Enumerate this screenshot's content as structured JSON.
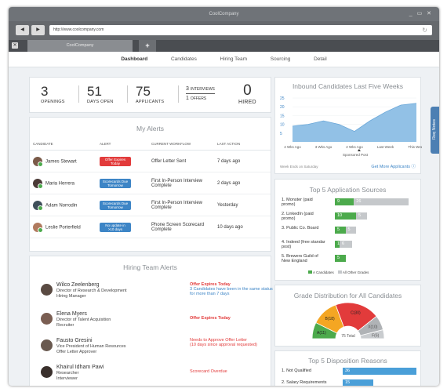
{
  "window": {
    "title": "CoolCompany",
    "controls": "_ ▭ ✕"
  },
  "browser": {
    "back": "◀",
    "forward": "▶",
    "url": "http://www.coolcompany.com",
    "reload": "↻",
    "tab_title": "CoolCompany",
    "new_tab": "+",
    "tab_close": "✕"
  },
  "nav": {
    "items": [
      "Dashboard",
      "Candidates",
      "Hiring Team",
      "Sourcing",
      "Detail"
    ],
    "active": 0
  },
  "metrics": {
    "openings": {
      "value": "3",
      "label": "OPENINGS"
    },
    "days_open": {
      "value": "51",
      "label": "DAYS OPEN"
    },
    "applicants": {
      "value": "75",
      "label": "APPLICANTS"
    },
    "interviews": {
      "value": "3",
      "label": "INTERVIEWS"
    },
    "offers": {
      "value": "1",
      "label": "OFFERS"
    },
    "hired": {
      "value": "0",
      "label": "HIRED"
    }
  },
  "my_alerts": {
    "title": "My Alerts",
    "columns": [
      "CANDIDATE",
      "ALERT",
      "CURRENT WORKFLOW",
      "LAST ACTION"
    ],
    "rows": [
      {
        "name": "James Stewart",
        "alert": "Offer Expires Today",
        "alert_color": "#e23b3b",
        "workflow": "Offer Letter Sent",
        "last": "7 days ago"
      },
      {
        "name": "Maria Herrera",
        "alert": "Scorecards Due Tomorrow",
        "alert_color": "#3d85c6",
        "workflow": "First In-Person Interview Complete",
        "last": "2 days ago"
      },
      {
        "name": "Adam Norrodin",
        "alert": "Scorecards Due Tomorrow",
        "alert_color": "#3d85c6",
        "workflow": "First In-Person Interview Complete",
        "last": "Yesterday"
      },
      {
        "name": "Leslie Porterfield",
        "alert": "No update in >10 days",
        "alert_color": "#3d85c6",
        "workflow": "Phone Screen Scorecard Complete",
        "last": "10 days ago"
      }
    ]
  },
  "hiring_team": {
    "title": "Hiring Team Alerts",
    "rows": [
      {
        "name": "Wilco Zeelenberg",
        "title": "Director of Research & Development",
        "role": "Hiring Manager",
        "alert": "Offer Expires Today",
        "detail": "3 Candidates have been in the same status for more than 7 days"
      },
      {
        "name": "Elena Myers",
        "title": "Director of Talent Acquisition",
        "role": "Recruiter",
        "alert": "Offer Expires Today",
        "detail": ""
      },
      {
        "name": "Fausto Gresini",
        "title": "Vice President of Human Resources",
        "role": "Offer Letter Approver",
        "alert": "Needs to Approve Offer Letter",
        "detail": "(10 days since approval requested)"
      },
      {
        "name": "Khairul Idham Pawi",
        "title": "Researcher",
        "role": "Interviewer",
        "alert": "Scorecard Overdue",
        "detail": ""
      }
    ]
  },
  "inbound": {
    "title": "Inbound Candidates Last Five Weeks",
    "footer_left": "Week Ends on Saturday",
    "footer_link": "Get More Applicants",
    "marker": "Sponsored Post"
  },
  "chart_data": [
    {
      "type": "area",
      "title": "Inbound Candidates Last Five Weeks",
      "categories": [
        "4 Wks Ago",
        "3 Wks Ago",
        "2 Wks Ago",
        "Last Week",
        "This Week"
      ],
      "x": [
        0,
        0.5,
        1,
        1.5,
        2,
        2.5,
        3,
        3.5,
        4
      ],
      "values": [
        9,
        10,
        12,
        10,
        6,
        12,
        17,
        21,
        22
      ],
      "ylim": [
        0,
        25
      ],
      "yticks": [
        5,
        10,
        15,
        20,
        25
      ],
      "color": "#92c1e6"
    },
    {
      "type": "bar",
      "title": "Top 5 Application Sources",
      "categories": [
        "1. Monster (paid promo)",
        "2. LinkedIn (paid promo)",
        "3. Public Co. Board",
        "4. Indeed (free standar post)",
        "5. Brewers Guild of New England"
      ],
      "series": [
        {
          "name": "A Candidates",
          "values": [
            9,
            10,
            5,
            1,
            5
          ],
          "color": "#4caa4c"
        },
        {
          "name": "All Other Grades",
          "values": [
            26,
            5,
            5,
            6,
            0
          ],
          "color": "#c5c8cb"
        }
      ]
    },
    {
      "type": "pie",
      "title": "Grade Distribution for All Candidates",
      "labels": [
        "A(11)",
        "B(18)",
        "C(30)",
        "X(10)",
        "F(6)"
      ],
      "values": [
        11,
        18,
        30,
        10,
        6
      ],
      "colors": [
        "#4caa4c",
        "#f4a623",
        "#e23b3b",
        "#b0b3b6",
        "#c9cccf"
      ],
      "center_label": "75 Total"
    },
    {
      "type": "bar",
      "title": "Top 5 Disposition Reasons",
      "categories": [
        "1. Not Qualified",
        "2. Salary Requirements"
      ],
      "values": [
        36,
        15
      ],
      "color": "#4a9fd8"
    }
  ],
  "sources": {
    "title": "Top 5 Application Sources",
    "legend_a": "A Candidates",
    "legend_b": "All Other Grades"
  },
  "grade": {
    "title": "Grade Distribution for All Candidates"
  },
  "disposition": {
    "title": "Top 5 Disposition Reasons"
  },
  "req_notes": "Req Notes"
}
